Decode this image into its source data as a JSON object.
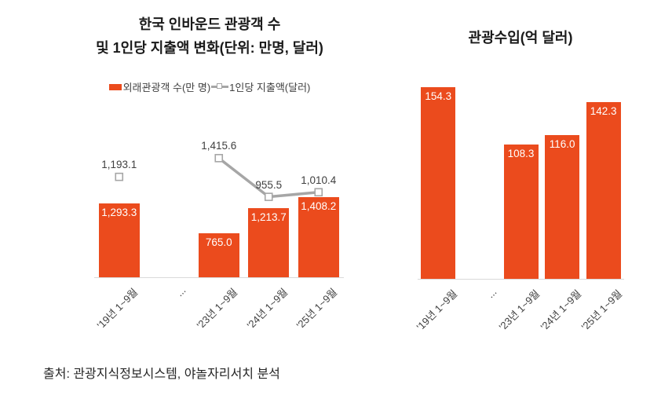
{
  "colors": {
    "bar": "#EB4B1D",
    "line": "#A6A6A6",
    "marker_fill": "#FFFFFF",
    "axis": "#D9D9D9",
    "bar_label": "#FFFFFF",
    "text": "#404040"
  },
  "source_note": "출처: 관광지식정보시스템, 야놀자리서치 분석",
  "chart_data": [
    {
      "type": "bar+line",
      "title_lines": [
        "한국 인바운드 관광객 수",
        "및 1인당 지출액 변화(단위: 만명, 달러)"
      ],
      "categories": [
        "'19년 1~9월",
        "...",
        "'23년 1~9월",
        "'24년 1~9월",
        "'25년 1~9월"
      ],
      "series": [
        {
          "name": "외래관광객 수(만 명)",
          "type": "bar",
          "values": [
            1293.3,
            null,
            765.0,
            1213.7,
            1408.2
          ],
          "labels": [
            "1,293.3",
            null,
            "765.0",
            "1,213.7",
            "1,408.2"
          ]
        },
        {
          "name": "1인당 지출액(달러)",
          "type": "line",
          "values": [
            1193.1,
            null,
            1415.6,
            955.5,
            1010.4
          ],
          "labels": [
            "1,193.1",
            null,
            "1,415.6",
            "955.5",
            "1,010.4"
          ]
        }
      ],
      "bar_axis": {
        "min": 0,
        "max": 3100
      },
      "line_axis": {
        "min": 0,
        "max": 2100
      },
      "legend_position": "top",
      "grid": false
    },
    {
      "type": "bar",
      "title": "관광수입(억 달러)",
      "categories": [
        "'19년 1~9월",
        "...",
        "'23년 1~9월",
        "'24년 1~9월",
        "'25년 1~9월"
      ],
      "values": [
        154.3,
        null,
        108.3,
        116.0,
        142.3
      ],
      "labels": [
        "154.3",
        null,
        "108.3",
        "116.0",
        "142.3"
      ],
      "bar_axis": {
        "min": 0,
        "max": 160
      },
      "grid": false
    }
  ]
}
